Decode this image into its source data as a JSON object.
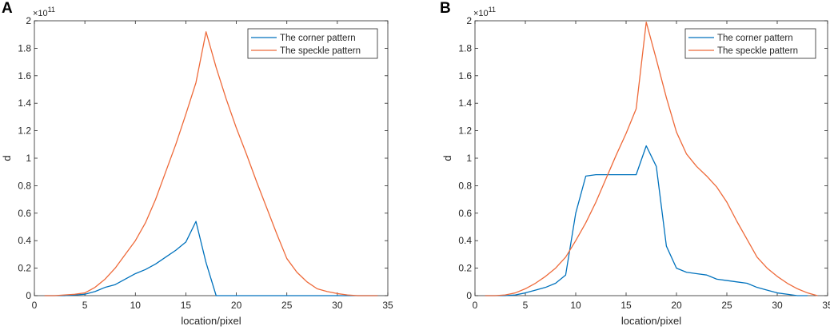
{
  "colors": {
    "corner": "#0072BD",
    "speckle": "#EE6A3A",
    "axis": "#262626"
  },
  "chart_data": [
    {
      "panel_label": "A",
      "type": "line",
      "title": "",
      "xlabel": "location/pixel",
      "ylabel": "d",
      "y_exponent": "×10",
      "y_exponent_power": "11",
      "xlim": [
        0,
        35
      ],
      "ylim": [
        0,
        2
      ],
      "xticks": [
        "0",
        "5",
        "10",
        "15",
        "20",
        "25",
        "30",
        "35"
      ],
      "yticks": [
        "0",
        "0.2",
        "0.4",
        "0.6",
        "0.8",
        "1",
        "1.2",
        "1.4",
        "1.6",
        "1.8",
        "2"
      ],
      "legend_position": "top-right",
      "series": [
        {
          "name": "The corner pattern",
          "color_key": "corner",
          "x": [
            1,
            2,
            3,
            4,
            5,
            6,
            7,
            8,
            9,
            10,
            11,
            12,
            13,
            14,
            15,
            16,
            17,
            18,
            19,
            20,
            21,
            22,
            23,
            24,
            25,
            26,
            27,
            28,
            29,
            30,
            31,
            32,
            33,
            34
          ],
          "y": [
            0,
            0,
            0,
            0.005,
            0.01,
            0.03,
            0.06,
            0.08,
            0.12,
            0.16,
            0.19,
            0.23,
            0.28,
            0.33,
            0.39,
            0.54,
            0.24,
            0,
            0,
            0,
            0,
            0,
            0,
            0,
            0,
            0,
            0,
            0,
            0,
            0,
            0,
            0,
            0,
            0
          ]
        },
        {
          "name": "The speckle pattern",
          "color_key": "speckle",
          "x": [
            1,
            2,
            3,
            4,
            5,
            6,
            7,
            8,
            9,
            10,
            11,
            12,
            13,
            14,
            15,
            16,
            17,
            18,
            19,
            20,
            21,
            22,
            23,
            24,
            25,
            26,
            27,
            28,
            29,
            30,
            31,
            32,
            33,
            34
          ],
          "y": [
            0,
            0,
            0.005,
            0.01,
            0.02,
            0.06,
            0.12,
            0.2,
            0.3,
            0.4,
            0.53,
            0.7,
            0.9,
            1.1,
            1.32,
            1.55,
            1.92,
            1.66,
            1.43,
            1.22,
            1.03,
            0.83,
            0.64,
            0.45,
            0.27,
            0.17,
            0.1,
            0.05,
            0.03,
            0.015,
            0.005,
            0,
            0,
            0
          ]
        }
      ]
    },
    {
      "panel_label": "B",
      "type": "line",
      "title": "",
      "xlabel": "location/pixel",
      "ylabel": "d",
      "y_exponent": "×10",
      "y_exponent_power": "11",
      "xlim": [
        0,
        35
      ],
      "ylim": [
        0,
        2
      ],
      "xticks": [
        "0",
        "5",
        "10",
        "15",
        "20",
        "25",
        "30",
        "35"
      ],
      "yticks": [
        "0",
        "0.2",
        "0.4",
        "0.6",
        "0.8",
        "1",
        "1.2",
        "1.4",
        "1.6",
        "1.8",
        "2"
      ],
      "legend_position": "top-right",
      "series": [
        {
          "name": "The corner pattern",
          "color_key": "corner",
          "x": [
            1,
            2,
            3,
            4,
            5,
            6,
            7,
            8,
            9,
            10,
            11,
            12,
            13,
            14,
            15,
            16,
            17,
            18,
            19,
            20,
            21,
            22,
            23,
            24,
            25,
            26,
            27,
            28,
            29,
            30,
            31,
            32,
            33
          ],
          "y": [
            0,
            0,
            0,
            0.005,
            0.02,
            0.04,
            0.06,
            0.09,
            0.15,
            0.6,
            0.87,
            0.88,
            0.88,
            0.88,
            0.88,
            0.88,
            1.09,
            0.94,
            0.36,
            0.2,
            0.17,
            0.16,
            0.15,
            0.12,
            0.11,
            0.1,
            0.09,
            0.06,
            0.04,
            0.02,
            0.01,
            0,
            0
          ]
        },
        {
          "name": "The speckle pattern",
          "color_key": "speckle",
          "x": [
            1,
            2,
            3,
            4,
            5,
            6,
            7,
            8,
            9,
            10,
            11,
            12,
            13,
            14,
            15,
            16,
            17,
            18,
            19,
            20,
            21,
            22,
            23,
            24,
            25,
            26,
            27,
            28,
            29,
            30,
            31,
            32,
            33,
            34
          ],
          "y": [
            0,
            0,
            0.005,
            0.02,
            0.05,
            0.09,
            0.14,
            0.2,
            0.28,
            0.4,
            0.53,
            0.68,
            0.85,
            1.02,
            1.18,
            1.36,
            1.99,
            1.72,
            1.44,
            1.19,
            1.03,
            0.94,
            0.87,
            0.79,
            0.68,
            0.54,
            0.41,
            0.28,
            0.2,
            0.14,
            0.09,
            0.05,
            0.02,
            0
          ]
        }
      ]
    }
  ]
}
